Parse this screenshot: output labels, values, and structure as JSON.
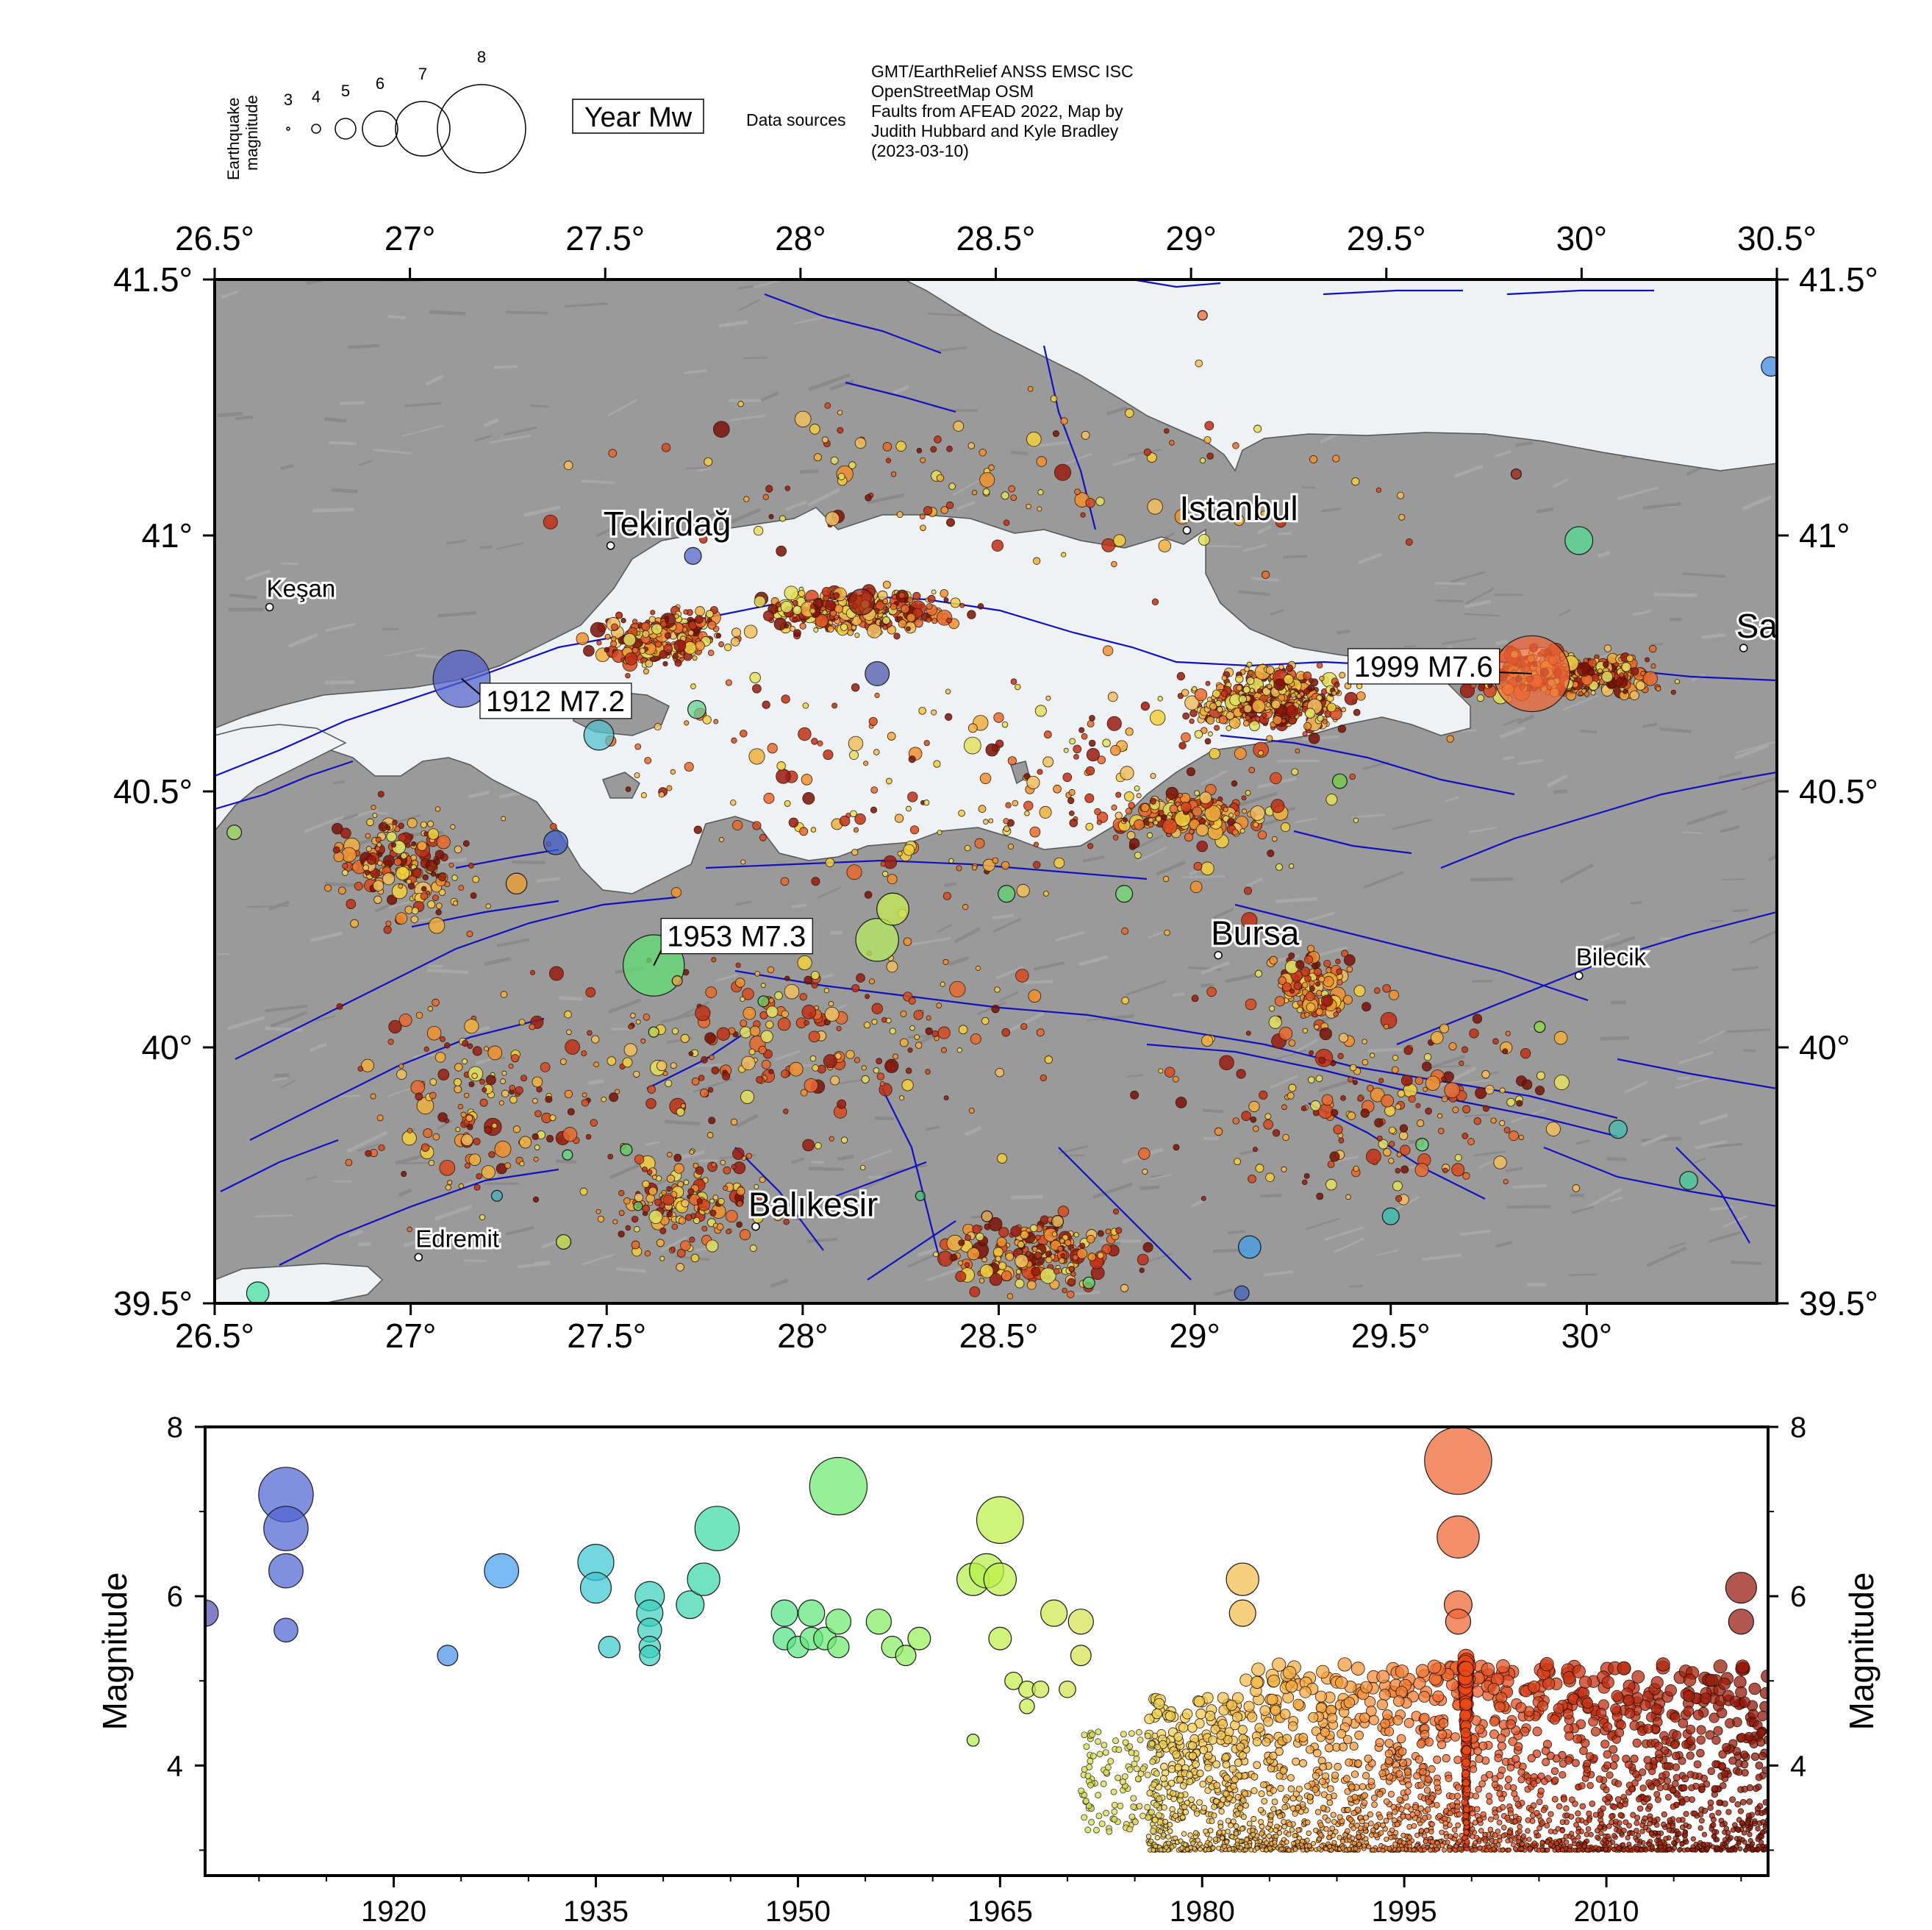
{
  "legend": {
    "magnitude_label_line1": "Earthquake",
    "magnitude_label_line2": "magnitude",
    "magnitude_sizes": [
      "3",
      "4",
      "5",
      "6",
      "7",
      "8"
    ],
    "year_mw_box": "Year Mw",
    "data_sources_label": "Data sources",
    "sources_lines": [
      "GMT/EarthRelief ANSS EMSC ISC",
      "OpenStreetMap OSM",
      "Faults from AFEAD 2022, Map by",
      "Judith Hubbard and Kyle Bradley",
      "(2023-03-10)"
    ]
  },
  "map": {
    "lon_ticks": [
      "26.5°",
      "27°",
      "27.5°",
      "28°",
      "28.5°",
      "29°",
      "29.5°",
      "30°",
      "30.5°"
    ],
    "lat_ticks": [
      "41.5°",
      "41°",
      "40.5°",
      "40°",
      "39.5°"
    ],
    "lon_range": [
      26.5,
      30.5
    ],
    "lat_range": [
      39.5,
      41.5
    ],
    "cities": [
      {
        "name": "Tekirdağ",
        "lon": 27.51,
        "lat": 40.98,
        "size": "big"
      },
      {
        "name": "Keşan",
        "lon": 26.64,
        "lat": 40.86,
        "size": "small"
      },
      {
        "name": "Istanbul",
        "lon": 28.98,
        "lat": 41.01,
        "size": "big"
      },
      {
        "name": "Sakarya",
        "lon": 30.4,
        "lat": 40.78,
        "size": "big"
      },
      {
        "name": "Bursa",
        "lon": 29.06,
        "lat": 40.18,
        "size": "big"
      },
      {
        "name": "Bilecik",
        "lon": 29.98,
        "lat": 40.14,
        "size": "small"
      },
      {
        "name": "Edremit",
        "lon": 27.02,
        "lat": 39.59,
        "size": "small"
      },
      {
        "name": "Balıkesir",
        "lon": 27.88,
        "lat": 39.65,
        "size": "big"
      }
    ],
    "event_labels": [
      {
        "text": "1912 M7.2",
        "lon": 27.13,
        "lat": 40.72,
        "mag": 7.2,
        "year": 1912,
        "color": "#4a5cc8"
      },
      {
        "text": "1953 M7.3",
        "lon": 27.62,
        "lat": 40.16,
        "mag": 7.3,
        "year": 1953,
        "color": "#6ee86e"
      },
      {
        "text": "1999 M7.6",
        "lon": 29.86,
        "lat": 40.73,
        "mag": 7.6,
        "year": 1999,
        "color": "#f07040"
      }
    ],
    "notable_quakes": [
      {
        "lon": 27.13,
        "lat": 40.72,
        "mag": 7.2,
        "color": "#5060cc"
      },
      {
        "lon": 27.62,
        "lat": 40.16,
        "mag": 7.3,
        "color": "#60e070"
      },
      {
        "lon": 29.86,
        "lat": 40.73,
        "mag": 7.6,
        "color": "#f06838"
      },
      {
        "lon": 28.19,
        "lat": 40.21,
        "mag": 6.8,
        "color": "#b8f060"
      },
      {
        "lon": 28.23,
        "lat": 40.27,
        "mag": 6.4,
        "color": "#c8f050"
      },
      {
        "lon": 28.15,
        "lat": 40.87,
        "mag": 6.1,
        "color": "#a02010"
      },
      {
        "lon": 28.19,
        "lat": 40.73,
        "mag": 6.0,
        "color": "#4a50a8"
      },
      {
        "lon": 27.48,
        "lat": 40.61,
        "mag": 6.3,
        "color": "#50c0d0"
      },
      {
        "lon": 27.37,
        "lat": 40.4,
        "mag": 6.0,
        "color": "#4060d0"
      },
      {
        "lon": 29.98,
        "lat": 40.99,
        "mag": 6.2,
        "color": "#50e090"
      },
      {
        "lon": 30.47,
        "lat": 41.33,
        "mag": 5.7,
        "color": "#3b88e0"
      },
      {
        "lon": 29.14,
        "lat": 39.61,
        "mag": 5.9,
        "color": "#3ea0e8"
      },
      {
        "lon": 29.37,
        "lat": 40.52,
        "mag": 5.3,
        "color": "#70d040"
      },
      {
        "lon": 28.52,
        "lat": 40.3,
        "mag": 5.5,
        "color": "#60d870"
      },
      {
        "lon": 28.82,
        "lat": 40.3,
        "mag": 5.5,
        "color": "#70e070"
      },
      {
        "lon": 27.73,
        "lat": 40.66,
        "mag": 5.6,
        "color": "#60d090"
      },
      {
        "lon": 27.72,
        "lat": 40.96,
        "mag": 5.5,
        "color": "#5060c8"
      },
      {
        "lon": 30.08,
        "lat": 39.84,
        "mag": 5.6,
        "color": "#40c0b0"
      },
      {
        "lon": 30.26,
        "lat": 39.74,
        "mag": 5.6,
        "color": "#40d0a0"
      },
      {
        "lon": 29.5,
        "lat": 39.67,
        "mag": 5.5,
        "color": "#30c0b0"
      },
      {
        "lon": 27.27,
        "lat": 40.32,
        "mag": 5.8,
        "color": "#f0a030"
      },
      {
        "lon": 27.39,
        "lat": 39.62,
        "mag": 5.3,
        "color": "#c8e040"
      },
      {
        "lon": 26.61,
        "lat": 39.52,
        "mag": 5.9,
        "color": "#40e0a0"
      },
      {
        "lon": 26.55,
        "lat": 40.42,
        "mag": 5.3,
        "color": "#a0e060"
      },
      {
        "lon": 27.68,
        "lat": 40.13,
        "mag": 4.8,
        "color": "#f0a040"
      },
      {
        "lon": 28.65,
        "lat": 39.66,
        "mag": 5.0,
        "color": "#f0b040"
      },
      {
        "lon": 28.47,
        "lat": 39.67,
        "mag": 4.9,
        "color": "#e8a040"
      },
      {
        "lon": 29.02,
        "lat": 41.43,
        "mag": 4.7,
        "color": "#f06030"
      },
      {
        "lon": 29.82,
        "lat": 41.12,
        "mag": 4.8,
        "color": "#a02010"
      },
      {
        "lon": 27.22,
        "lat": 39.71,
        "mag": 4.9,
        "color": "#40b0c0"
      },
      {
        "lon": 29.58,
        "lat": 39.81,
        "mag": 5.1,
        "color": "#60e080"
      },
      {
        "lon": 29.88,
        "lat": 40.04,
        "mag": 4.9,
        "color": "#90e040"
      },
      {
        "lon": 29.12,
        "lat": 39.52,
        "mag": 5.3,
        "color": "#4060c0"
      },
      {
        "lon": 28.73,
        "lat": 39.54,
        "mag": 5.0,
        "color": "#60e070"
      },
      {
        "lon": 27.55,
        "lat": 39.8,
        "mag": 5.0,
        "color": "#60d060"
      },
      {
        "lon": 27.4,
        "lat": 39.79,
        "mag": 4.8,
        "color": "#60e080"
      },
      {
        "lon": 27.58,
        "lat": 39.69,
        "mag": 4.6,
        "color": "#70e060"
      },
      {
        "lon": 28.3,
        "lat": 39.71,
        "mag": 4.7,
        "color": "#40c070"
      },
      {
        "lon": 27.9,
        "lat": 40.09,
        "mag": 4.9,
        "color": "#60d060"
      },
      {
        "lon": 27.62,
        "lat": 40.03,
        "mag": 4.8,
        "color": "#d0e040"
      }
    ]
  },
  "timeline": {
    "ylabel": "Magnitude",
    "y_ticks": [
      "8",
      "6",
      "4"
    ],
    "x_ticks": [
      "1920",
      "1935",
      "1950",
      "1965",
      "1980",
      "1995",
      "2010"
    ],
    "x_range": [
      1906,
      2022
    ],
    "y_range": [
      2.7,
      8.0
    ]
  },
  "colors": {
    "frame": "#000000",
    "land": "#9a9a9a",
    "sea": "#e9eef3",
    "fault": "#1010c0"
  },
  "chart_data": {
    "type": "scatter",
    "title": "",
    "xlabel": "",
    "ylabel": "Magnitude",
    "xlim": [
      1906,
      2022
    ],
    "ylim": [
      2.7,
      8.0
    ],
    "grid": false,
    "legend": "none",
    "series": [
      {
        "x": [
          1906,
          1912,
          1912,
          1912,
          1912,
          1924,
          1928,
          1935,
          1935,
          1936,
          1939,
          1939,
          1939,
          1939,
          1939,
          1942,
          1943,
          1944,
          1949,
          1949,
          1950,
          1951,
          1951,
          1952,
          1953,
          1953,
          1953,
          1956,
          1957,
          1958,
          1959,
          1963,
          1963,
          1964,
          1965,
          1965,
          1965,
          1966,
          1967,
          1967,
          1968,
          1969,
          1970,
          1971,
          1971,
          1983,
          1983,
          1999,
          1999,
          1999,
          1999,
          2020,
          2020
        ],
        "y": [
          5.8,
          7.2,
          6.8,
          6.3,
          5.6,
          5.3,
          6.3,
          6.4,
          6.1,
          5.4,
          6.0,
          5.8,
          5.6,
          5.4,
          5.3,
          5.9,
          6.2,
          6.8,
          5.8,
          5.5,
          5.4,
          5.8,
          5.5,
          5.5,
          7.3,
          5.7,
          5.4,
          5.7,
          5.4,
          5.3,
          5.5,
          4.3,
          6.2,
          6.3,
          6.9,
          6.2,
          5.5,
          5.0,
          4.9,
          4.7,
          4.9,
          5.8,
          4.9,
          5.7,
          5.3,
          6.2,
          5.8,
          7.6,
          6.7,
          5.9,
          5.7,
          6.1,
          5.7
        ]
      }
    ]
  }
}
